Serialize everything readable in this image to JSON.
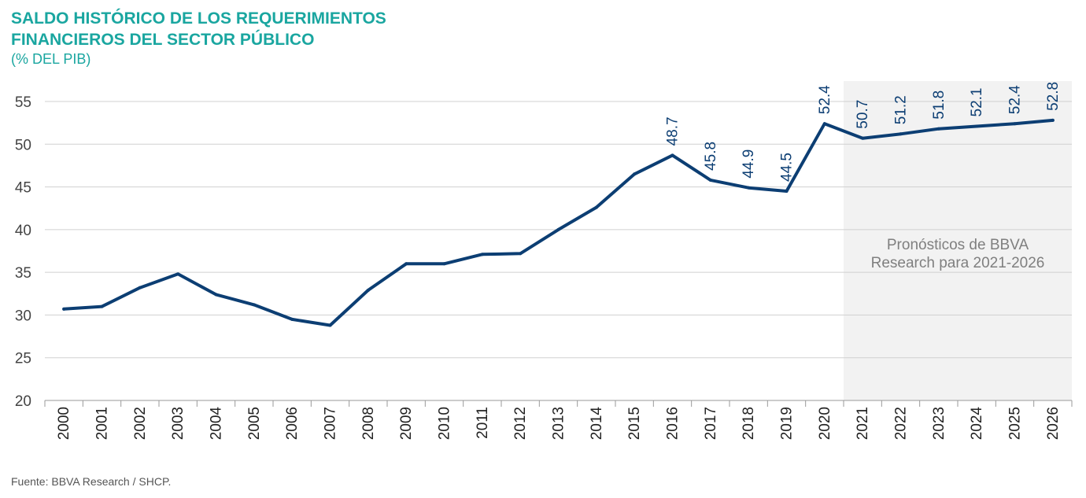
{
  "header": {
    "title_line1": "SALDO HISTÓRICO DE LOS REQUERIMIENTOS",
    "title_line2": "FINANCIEROS DEL SECTOR PÚBLICO",
    "subtitle": "(% DEL PIB)"
  },
  "footer": {
    "source": "Fuente: BBVA Research / SHCP."
  },
  "colors": {
    "title": "#1aa6a0",
    "line": "#0c3e73",
    "forecast_bg": "#f2f2f2",
    "grid": "#d0d0d0"
  },
  "chart_data": {
    "type": "line",
    "title": "SALDO HISTÓRICO DE LOS REQUERIMIENTOS FINANCIEROS DEL SECTOR PÚBLICO",
    "subtitle": "(% DEL PIB)",
    "xlabel": "",
    "ylabel": "",
    "ylim": [
      20,
      55
    ],
    "yticks": [
      20,
      25,
      30,
      35,
      40,
      45,
      50,
      55
    ],
    "grid": true,
    "categories": [
      "2000",
      "2001",
      "2002",
      "2003",
      "2004",
      "2005",
      "2006",
      "2007",
      "2008",
      "2009",
      "2010",
      "2011",
      "2012",
      "2013",
      "2014",
      "2015",
      "2016",
      "2017",
      "2018",
      "2019",
      "2020",
      "2021",
      "2022",
      "2023",
      "2024",
      "2025",
      "2026"
    ],
    "series": [
      {
        "values": [
          30.7,
          31.0,
          33.2,
          34.8,
          32.4,
          31.2,
          29.5,
          28.8,
          32.9,
          36.0,
          36.0,
          37.1,
          37.2,
          40.0,
          42.6,
          46.5,
          48.7,
          45.8,
          44.9,
          44.5,
          52.4,
          50.7,
          51.2,
          51.8,
          52.1,
          52.4,
          52.8
        ]
      }
    ],
    "data_labels": [
      {
        "year": "2016",
        "text": "48.7"
      },
      {
        "year": "2017",
        "text": "45.8"
      },
      {
        "year": "2018",
        "text": "44.9"
      },
      {
        "year": "2019",
        "text": "44.5"
      },
      {
        "year": "2020",
        "text": "52.4"
      },
      {
        "year": "2021",
        "text": "50.7"
      },
      {
        "year": "2022",
        "text": "51.2"
      },
      {
        "year": "2023",
        "text": "51.8"
      },
      {
        "year": "2024",
        "text": "52.1"
      },
      {
        "year": "2025",
        "text": "52.4"
      },
      {
        "year": "2026",
        "text": "52.8"
      }
    ],
    "forecast": {
      "from": "2021",
      "to": "2026",
      "annotation_line1": "Pronósticos de BBVA",
      "annotation_line2": "Research para 2021-2026"
    }
  }
}
